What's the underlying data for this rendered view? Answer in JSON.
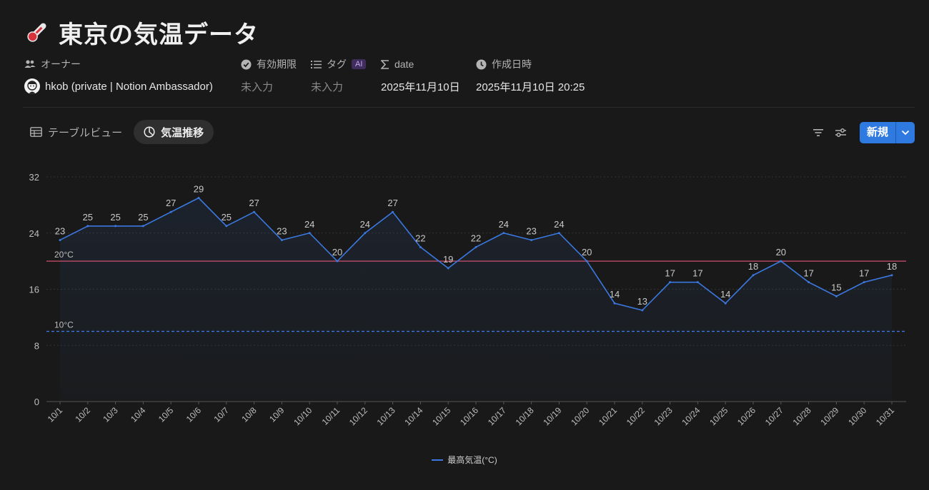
{
  "page": {
    "title": "東京の気温データ",
    "icon": "thermometer-icon"
  },
  "properties": {
    "owner": {
      "label": "オーナー",
      "value": "hkob (private | Notion Ambassador)",
      "icon": "people-icon"
    },
    "expiry": {
      "label": "有効期限",
      "value": "未入力",
      "icon": "verified-badge-icon"
    },
    "tags": {
      "label": "タグ",
      "badge": "AI",
      "value": "未入力",
      "icon": "list-icon"
    },
    "date": {
      "label": "date",
      "value": "2025年11月10日",
      "icon": "sigma-icon"
    },
    "created": {
      "label": "作成日時",
      "value": "2025年11月10日 20:25",
      "icon": "clock-icon"
    }
  },
  "views": {
    "tabs": [
      {
        "label": "テーブルビュー",
        "icon": "table-icon",
        "active": false
      },
      {
        "label": "気温推移",
        "icon": "pie-chart-icon",
        "active": true
      }
    ]
  },
  "toolbar": {
    "new_label": "新規",
    "filter_icon": "filter-icon",
    "settings_icon": "sliders-icon",
    "dropdown_icon": "chevron-down-icon"
  },
  "colors": {
    "accent": "#2f7ae0",
    "line": "#3b78e0",
    "ref_high": "#d0506e",
    "ref_low": "#3b78e0"
  },
  "chart_data": {
    "type": "line",
    "title": "",
    "xlabel": "",
    "ylabel": "",
    "ylim": [
      0,
      32
    ],
    "yticks": [
      "0",
      "8",
      "16",
      "24",
      "32"
    ],
    "grid": true,
    "legend": "bottom-center",
    "categories": [
      "10/1",
      "10/2",
      "10/3",
      "10/4",
      "10/5",
      "10/6",
      "10/7",
      "10/8",
      "10/9",
      "10/10",
      "10/11",
      "10/12",
      "10/13",
      "10/14",
      "10/15",
      "10/16",
      "10/17",
      "10/18",
      "10/19",
      "10/20",
      "10/21",
      "10/22",
      "10/23",
      "10/24",
      "10/25",
      "10/26",
      "10/27",
      "10/28",
      "10/29",
      "10/30",
      "10/31"
    ],
    "series": [
      {
        "name": "最高気温(°C)",
        "values": [
          23,
          25,
          25,
          25,
          27,
          29,
          25,
          27,
          23,
          24,
          20,
          24,
          27,
          22,
          19,
          22,
          24,
          23,
          24,
          20,
          14,
          13,
          17,
          17,
          14,
          18,
          20,
          17,
          15,
          17,
          18
        ]
      }
    ],
    "reference_lines": [
      {
        "label": "20°C",
        "value": 20,
        "style": "solid"
      },
      {
        "label": "10°C",
        "value": 10,
        "style": "dashed"
      }
    ]
  }
}
